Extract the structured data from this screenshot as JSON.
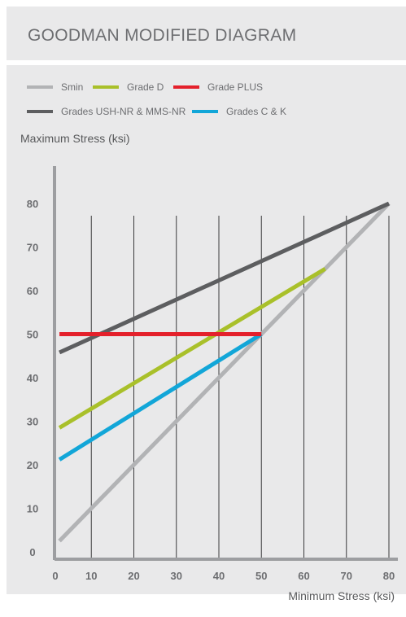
{
  "chart_data": {
    "type": "line",
    "title": "GOODMAN MODIFIED DIAGRAM",
    "xlabel": "Minimum Stress (ksi)",
    "ylabel": "Maximum Stress (ksi)",
    "xlim": [
      0,
      80
    ],
    "ylim": [
      0,
      80
    ],
    "xticks": [
      0,
      10,
      20,
      30,
      40,
      50,
      60,
      70,
      80
    ],
    "yticks": [
      0,
      10,
      20,
      30,
      40,
      50,
      60,
      70,
      80
    ],
    "grid": "vertical",
    "legend_position": "top",
    "series": [
      {
        "name": "Smin",
        "color": "#b2b3b5",
        "x": [
          2.5,
          80
        ],
        "y": [
          2.5,
          80
        ]
      },
      {
        "name": "Grade D",
        "color": "#a9c02a",
        "x": [
          2.5,
          65
        ],
        "y": [
          28.5,
          65
        ]
      },
      {
        "name": "Grade PLUS",
        "color": "#e4202b",
        "x": [
          2.5,
          50
        ],
        "y": [
          50,
          50
        ]
      },
      {
        "name": "Grades USH-NR & MMS-NR",
        "color": "#5d5e60",
        "x": [
          2.5,
          80
        ],
        "y": [
          45.8,
          80
        ]
      },
      {
        "name": "Grades C & K",
        "color": "#12a6d8",
        "x": [
          2.5,
          50
        ],
        "y": [
          21.2,
          50
        ]
      }
    ]
  }
}
